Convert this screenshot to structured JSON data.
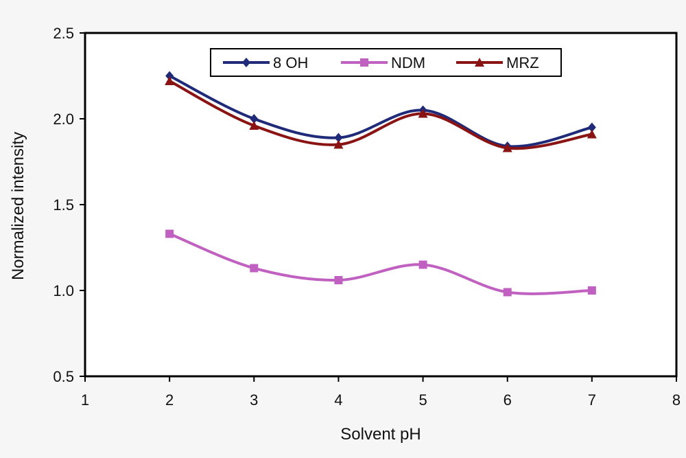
{
  "chart_data": {
    "type": "line",
    "xlabel": "Solvent pH",
    "ylabel": "Normalized intensity",
    "xlim": [
      1,
      8
    ],
    "ylim": [
      0.5,
      2.5
    ],
    "xticks": [
      "1",
      "2",
      "3",
      "4",
      "5",
      "6",
      "7",
      "8"
    ],
    "yticks": [
      "0.5",
      "1.0",
      "1.5",
      "2.0",
      "2.5"
    ],
    "x": [
      2,
      3,
      4,
      5,
      6,
      7
    ],
    "series": [
      {
        "name": "8 OH",
        "values": [
          2.25,
          2.0,
          1.89,
          2.05,
          1.84,
          1.95
        ],
        "color": "#1f2a78",
        "marker": "diamond"
      },
      {
        "name": "NDM",
        "values": [
          1.33,
          1.13,
          1.06,
          1.15,
          0.99,
          1.0
        ],
        "color": "#c060c0",
        "marker": "square"
      },
      {
        "name": "MRZ",
        "values": [
          2.22,
          1.96,
          1.85,
          2.03,
          1.83,
          1.91
        ],
        "color": "#8a1414",
        "marker": "triangle"
      }
    ],
    "legend_position": "top-center",
    "grid": false,
    "smooth": true
  }
}
